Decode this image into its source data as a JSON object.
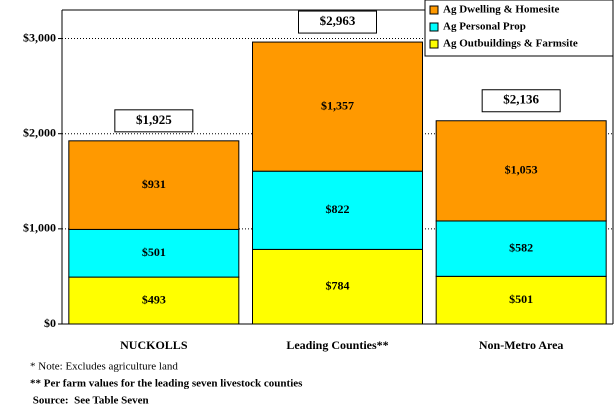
{
  "chart_data": {
    "type": "stacked_bar",
    "categories": [
      "NUCKOLLS",
      "Leading Counties**",
      "Non-Metro Area"
    ],
    "series": [
      {
        "name": "Ag Dwelling & Homesite",
        "color": "#ff9900",
        "values": [
          931,
          1357,
          1053
        ],
        "value_labels": [
          "$931",
          "$1,357",
          "$1,053"
        ]
      },
      {
        "name": "Ag Personal Prop",
        "color": "#00ffff",
        "values": [
          501,
          822,
          582
        ],
        "value_labels": [
          "$501",
          "$822",
          "$582"
        ]
      },
      {
        "name": "Ag Outbuildings & Farmsite",
        "color": "#ffff00",
        "values": [
          493,
          784,
          501
        ],
        "value_labels": [
          "$493",
          "$784",
          "$501"
        ]
      }
    ],
    "totals": [
      1925,
      2963,
      2136
    ],
    "total_labels": [
      "$1,925",
      "$2,963",
      "$2,136"
    ],
    "ylim": [
      0,
      3300
    ],
    "yticks": [
      {
        "value": 0,
        "label": "$0"
      },
      {
        "value": 1000,
        "label": "$1,000"
      },
      {
        "value": 2000,
        "label": "$2,000"
      },
      {
        "value": 3000,
        "label": "$3,000"
      }
    ],
    "grid": true,
    "legend": "top-right",
    "notes": [
      "* Note:  Excludes agriculture land",
      "** Per farm values for the leading seven livestock counties",
      " Source:  See Table Seven"
    ]
  }
}
